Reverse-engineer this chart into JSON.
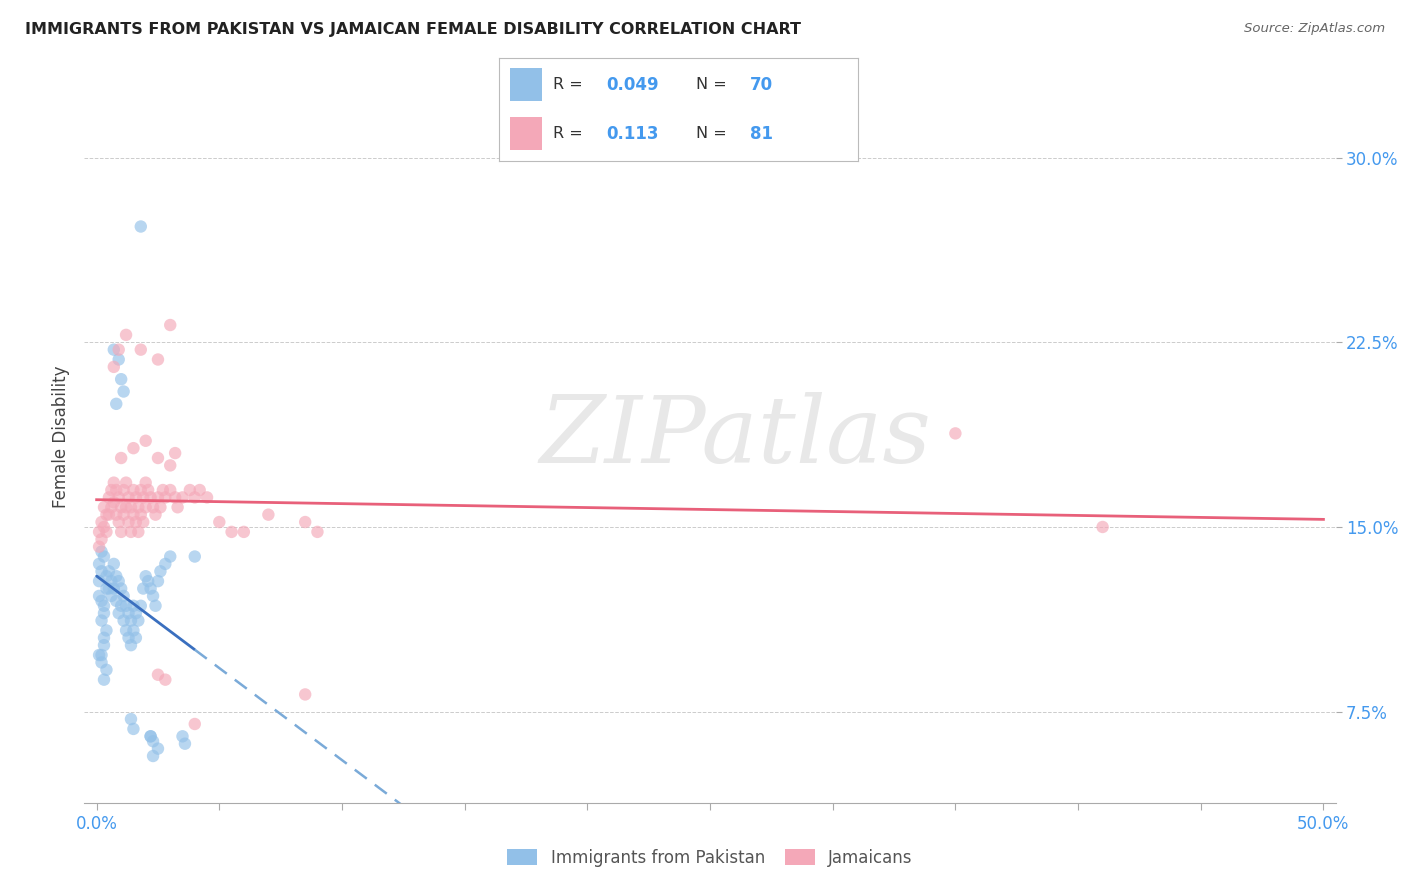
{
  "title": "IMMIGRANTS FROM PAKISTAN VS JAMAICAN FEMALE DISABILITY CORRELATION CHART",
  "source": "Source: ZipAtlas.com",
  "ylabel": "Female Disability",
  "ytick_labels": [
    "7.5%",
    "15.0%",
    "22.5%",
    "30.0%"
  ],
  "ytick_values": [
    0.075,
    0.15,
    0.225,
    0.3
  ],
  "xtick_values": [
    0.0,
    0.05,
    0.1,
    0.15,
    0.2,
    0.25,
    0.3,
    0.35,
    0.4,
    0.45,
    0.5
  ],
  "xlim": [
    -0.005,
    0.505
  ],
  "ylim": [
    0.038,
    0.335
  ],
  "color_pakistan": "#92C0E8",
  "color_jamaica": "#F4A8B8",
  "trendline_pakistan_solid_color": "#3A6FBF",
  "trendline_jamaica_solid_color": "#E8607A",
  "trendline_pakistan_dashed_color": "#7AAAD8",
  "watermark_text": "ZIPatlas",
  "legend_box_color": "#f0f0f0",
  "scatter_pakistan": [
    [
      0.001,
      0.128
    ],
    [
      0.001,
      0.135
    ],
    [
      0.002,
      0.14
    ],
    [
      0.002,
      0.132
    ],
    [
      0.001,
      0.122
    ],
    [
      0.003,
      0.118
    ],
    [
      0.002,
      0.112
    ],
    [
      0.003,
      0.105
    ],
    [
      0.001,
      0.098
    ],
    [
      0.002,
      0.095
    ],
    [
      0.004,
      0.13
    ],
    [
      0.003,
      0.138
    ],
    [
      0.004,
      0.125
    ],
    [
      0.002,
      0.12
    ],
    [
      0.003,
      0.115
    ],
    [
      0.004,
      0.108
    ],
    [
      0.003,
      0.102
    ],
    [
      0.002,
      0.098
    ],
    [
      0.004,
      0.092
    ],
    [
      0.003,
      0.088
    ],
    [
      0.005,
      0.132
    ],
    [
      0.005,
      0.125
    ],
    [
      0.006,
      0.128
    ],
    [
      0.006,
      0.122
    ],
    [
      0.007,
      0.135
    ],
    [
      0.007,
      0.125
    ],
    [
      0.008,
      0.13
    ],
    [
      0.008,
      0.12
    ],
    [
      0.009,
      0.128
    ],
    [
      0.009,
      0.115
    ],
    [
      0.01,
      0.125
    ],
    [
      0.01,
      0.118
    ],
    [
      0.011,
      0.122
    ],
    [
      0.011,
      0.112
    ],
    [
      0.012,
      0.118
    ],
    [
      0.012,
      0.108
    ],
    [
      0.013,
      0.115
    ],
    [
      0.013,
      0.105
    ],
    [
      0.014,
      0.112
    ],
    [
      0.014,
      0.102
    ],
    [
      0.015,
      0.118
    ],
    [
      0.015,
      0.108
    ],
    [
      0.016,
      0.115
    ],
    [
      0.016,
      0.105
    ],
    [
      0.017,
      0.112
    ],
    [
      0.018,
      0.118
    ],
    [
      0.019,
      0.125
    ],
    [
      0.02,
      0.13
    ],
    [
      0.021,
      0.128
    ],
    [
      0.022,
      0.125
    ],
    [
      0.023,
      0.122
    ],
    [
      0.024,
      0.118
    ],
    [
      0.025,
      0.128
    ],
    [
      0.026,
      0.132
    ],
    [
      0.028,
      0.135
    ],
    [
      0.03,
      0.138
    ],
    [
      0.007,
      0.222
    ],
    [
      0.009,
      0.218
    ],
    [
      0.01,
      0.21
    ],
    [
      0.011,
      0.205
    ],
    [
      0.008,
      0.2
    ],
    [
      0.018,
      0.272
    ],
    [
      0.014,
      0.072
    ],
    [
      0.015,
      0.068
    ],
    [
      0.022,
      0.065
    ],
    [
      0.023,
      0.063
    ],
    [
      0.025,
      0.06
    ],
    [
      0.022,
      0.065
    ],
    [
      0.023,
      0.057
    ],
    [
      0.035,
      0.065
    ],
    [
      0.036,
      0.062
    ],
    [
      0.04,
      0.138
    ]
  ],
  "scatter_jamaica": [
    [
      0.001,
      0.148
    ],
    [
      0.001,
      0.142
    ],
    [
      0.002,
      0.152
    ],
    [
      0.002,
      0.145
    ],
    [
      0.003,
      0.158
    ],
    [
      0.003,
      0.15
    ],
    [
      0.004,
      0.155
    ],
    [
      0.004,
      0.148
    ],
    [
      0.005,
      0.162
    ],
    [
      0.005,
      0.155
    ],
    [
      0.006,
      0.165
    ],
    [
      0.006,
      0.158
    ],
    [
      0.007,
      0.168
    ],
    [
      0.007,
      0.16
    ],
    [
      0.008,
      0.165
    ],
    [
      0.008,
      0.155
    ],
    [
      0.009,
      0.162
    ],
    [
      0.009,
      0.152
    ],
    [
      0.01,
      0.158
    ],
    [
      0.01,
      0.148
    ],
    [
      0.011,
      0.165
    ],
    [
      0.011,
      0.155
    ],
    [
      0.012,
      0.168
    ],
    [
      0.012,
      0.158
    ],
    [
      0.013,
      0.162
    ],
    [
      0.013,
      0.152
    ],
    [
      0.014,
      0.158
    ],
    [
      0.014,
      0.148
    ],
    [
      0.015,
      0.165
    ],
    [
      0.015,
      0.155
    ],
    [
      0.016,
      0.162
    ],
    [
      0.016,
      0.152
    ],
    [
      0.017,
      0.158
    ],
    [
      0.017,
      0.148
    ],
    [
      0.018,
      0.165
    ],
    [
      0.018,
      0.155
    ],
    [
      0.019,
      0.162
    ],
    [
      0.019,
      0.152
    ],
    [
      0.02,
      0.168
    ],
    [
      0.02,
      0.158
    ],
    [
      0.021,
      0.165
    ],
    [
      0.022,
      0.162
    ],
    [
      0.023,
      0.158
    ],
    [
      0.024,
      0.155
    ],
    [
      0.025,
      0.162
    ],
    [
      0.026,
      0.158
    ],
    [
      0.027,
      0.165
    ],
    [
      0.028,
      0.162
    ],
    [
      0.03,
      0.165
    ],
    [
      0.032,
      0.162
    ],
    [
      0.033,
      0.158
    ],
    [
      0.035,
      0.162
    ],
    [
      0.038,
      0.165
    ],
    [
      0.04,
      0.162
    ],
    [
      0.042,
      0.165
    ],
    [
      0.045,
      0.162
    ],
    [
      0.007,
      0.215
    ],
    [
      0.009,
      0.222
    ],
    [
      0.012,
      0.228
    ],
    [
      0.018,
      0.222
    ],
    [
      0.025,
      0.218
    ],
    [
      0.03,
      0.232
    ],
    [
      0.01,
      0.178
    ],
    [
      0.015,
      0.182
    ],
    [
      0.02,
      0.185
    ],
    [
      0.025,
      0.178
    ],
    [
      0.03,
      0.175
    ],
    [
      0.032,
      0.18
    ],
    [
      0.025,
      0.09
    ],
    [
      0.028,
      0.088
    ],
    [
      0.04,
      0.07
    ],
    [
      0.085,
      0.082
    ],
    [
      0.35,
      0.188
    ],
    [
      0.41,
      0.15
    ],
    [
      0.09,
      0.148
    ],
    [
      0.085,
      0.152
    ],
    [
      0.06,
      0.148
    ],
    [
      0.07,
      0.155
    ],
    [
      0.05,
      0.152
    ],
    [
      0.055,
      0.148
    ]
  ]
}
